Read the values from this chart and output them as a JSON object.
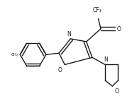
{
  "bg_color": "#ffffff",
  "line_color": "#1a1a1a",
  "lw": 1.0,
  "fs": 5.5,
  "atoms": {
    "O_carbonyl": "O",
    "N_morph": "N",
    "O_morph": "O",
    "N_oxazole": "N",
    "O_oxazole": "O",
    "CF3": "CF₃",
    "CH3": "CH₃"
  }
}
